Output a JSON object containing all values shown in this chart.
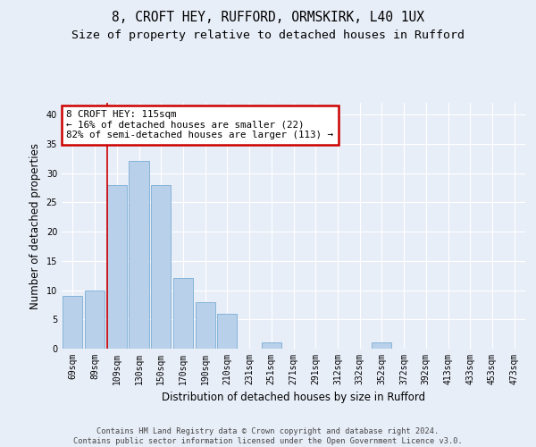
{
  "title1": "8, CROFT HEY, RUFFORD, ORMSKIRK, L40 1UX",
  "title2": "Size of property relative to detached houses in Rufford",
  "xlabel": "Distribution of detached houses by size in Rufford",
  "ylabel": "Number of detached properties",
  "categories": [
    "69sqm",
    "89sqm",
    "109sqm",
    "130sqm",
    "150sqm",
    "170sqm",
    "190sqm",
    "210sqm",
    "231sqm",
    "251sqm",
    "271sqm",
    "291sqm",
    "312sqm",
    "332sqm",
    "352sqm",
    "372sqm",
    "392sqm",
    "413sqm",
    "433sqm",
    "453sqm",
    "473sqm"
  ],
  "values": [
    9,
    10,
    28,
    32,
    28,
    12,
    8,
    6,
    0,
    1,
    0,
    0,
    0,
    0,
    1,
    0,
    0,
    0,
    0,
    0,
    0
  ],
  "bar_color": "#b8d0ea",
  "bar_edge_color": "#7aadd4",
  "property_line_color": "#cc0000",
  "annotation_text": "8 CROFT HEY: 115sqm\n← 16% of detached houses are smaller (22)\n82% of semi-detached houses are larger (113) →",
  "annotation_box_color": "#cc0000",
  "ylim": [
    0,
    42
  ],
  "yticks": [
    0,
    5,
    10,
    15,
    20,
    25,
    30,
    35,
    40
  ],
  "background_color": "#e8eef8",
  "plot_background_color": "#e8eef8",
  "footer_text": "Contains HM Land Registry data © Crown copyright and database right 2024.\nContains public sector information licensed under the Open Government Licence v3.0.",
  "grid_color": "#ffffff",
  "title_fontsize": 10.5,
  "subtitle_fontsize": 9.5,
  "tick_fontsize": 7,
  "ylabel_fontsize": 8.5,
  "xlabel_fontsize": 8.5,
  "ann_fontsize": 7.8
}
